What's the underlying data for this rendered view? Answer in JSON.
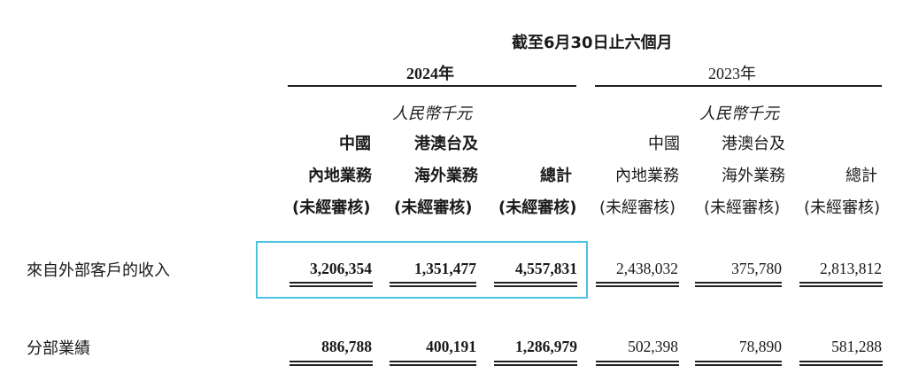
{
  "header": {
    "period": "截至6月30日止六個月",
    "years": [
      "2024年",
      "2023年"
    ],
    "currency": "人民幣千元"
  },
  "columns": [
    {
      "l1": "中國",
      "l2": "內地業務",
      "l3": "(未經審核)"
    },
    {
      "l1": "港澳台及",
      "l2": "海外業務",
      "l3": "(未經審核)"
    },
    {
      "l1": "",
      "l2": "總計",
      "l3": "(未經審核)"
    },
    {
      "l1": "中國",
      "l2": "內地業務",
      "l3": "(未經審核)"
    },
    {
      "l1": "港澳台及",
      "l2": "海外業務",
      "l3": "(未經審核)"
    },
    {
      "l1": "",
      "l2": "總計",
      "l3": "(未經審核)"
    }
  ],
  "rows": [
    {
      "label": "來自外部客戶的收入",
      "values": [
        "3,206,354",
        "1,351,477",
        "4,557,831",
        "2,438,032",
        "375,780",
        "2,813,812"
      ]
    },
    {
      "label": "分部業績",
      "values": [
        "886,788",
        "400,191",
        "1,286,979",
        "502,398",
        "78,890",
        "581,288"
      ]
    }
  ],
  "colors": {
    "highlight": "#4cc3e0"
  }
}
